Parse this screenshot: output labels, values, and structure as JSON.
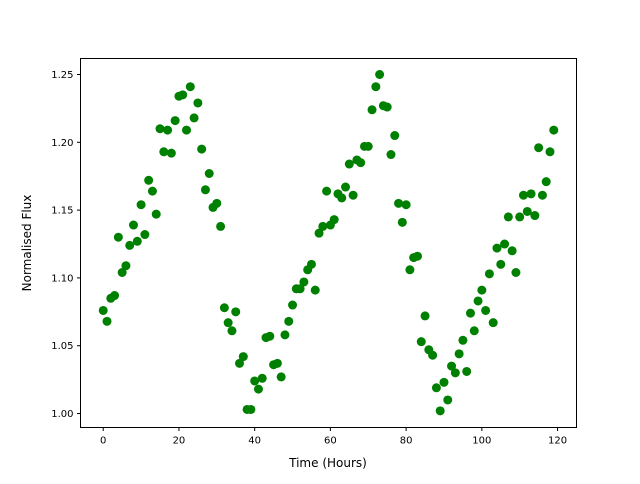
{
  "chart_data": {
    "type": "scatter",
    "title": "",
    "xlabel": "Time (Hours)",
    "ylabel": "Normalised Flux",
    "xlim": [
      -6,
      125
    ],
    "ylim": [
      0.9897,
      1.2618
    ],
    "xticks": [
      0,
      20,
      40,
      60,
      80,
      100,
      120
    ],
    "yticks": [
      1.0,
      1.05,
      1.1,
      1.15,
      1.2,
      1.25
    ],
    "xtick_labels": [
      "0",
      "20",
      "40",
      "60",
      "80",
      "100",
      "120"
    ],
    "ytick_labels": [
      "1.00",
      "1.05",
      "1.10",
      "1.15",
      "1.20",
      "1.25"
    ],
    "grid": false,
    "marker_color": "#008000",
    "x": [
      0,
      1,
      2,
      3,
      4,
      5,
      6,
      7,
      8,
      9,
      10,
      11,
      12,
      13,
      14,
      15,
      16,
      17,
      18,
      19,
      20,
      21,
      22,
      23,
      24,
      25,
      26,
      27,
      28,
      29,
      30,
      31,
      32,
      33,
      34,
      35,
      36,
      37,
      38,
      39,
      40,
      41,
      42,
      43,
      44,
      45,
      46,
      47,
      48,
      49,
      50,
      51,
      52,
      53,
      54,
      55,
      56,
      57,
      58,
      59,
      60,
      61,
      62,
      63,
      64,
      65,
      66,
      67,
      68,
      69,
      70,
      71,
      72,
      73,
      74,
      75,
      76,
      77,
      78,
      79,
      80,
      81,
      82,
      83,
      84,
      85,
      86,
      87,
      88,
      89,
      90,
      91,
      92,
      93,
      94,
      95,
      96,
      97,
      98,
      99,
      100,
      101,
      102,
      103,
      104,
      105,
      106,
      107,
      108,
      109,
      110,
      111,
      112,
      113,
      114,
      115,
      116,
      117,
      118,
      119
    ],
    "y": [
      1.076,
      1.068,
      1.085,
      1.087,
      1.13,
      1.104,
      1.109,
      1.124,
      1.139,
      1.127,
      1.154,
      1.132,
      1.172,
      1.164,
      1.147,
      1.21,
      1.193,
      1.209,
      1.192,
      1.216,
      1.234,
      1.235,
      1.209,
      1.241,
      1.218,
      1.229,
      1.195,
      1.165,
      1.177,
      1.152,
      1.155,
      1.138,
      1.078,
      1.067,
      1.061,
      1.075,
      1.037,
      1.042,
      1.003,
      1.003,
      1.024,
      1.018,
      1.026,
      1.056,
      1.057,
      1.036,
      1.037,
      1.027,
      1.058,
      1.068,
      1.08,
      1.092,
      1.092,
      1.097,
      1.106,
      1.11,
      1.091,
      1.133,
      1.138,
      1.164,
      1.139,
      1.143,
      1.162,
      1.159,
      1.167,
      1.184,
      1.161,
      1.187,
      1.185,
      1.197,
      1.197,
      1.224,
      1.241,
      1.25,
      1.227,
      1.226,
      1.191,
      1.205,
      1.155,
      1.141,
      1.154,
      1.106,
      1.115,
      1.116,
      1.053,
      1.072,
      1.047,
      1.043,
      1.019,
      1.002,
      1.023,
      1.01,
      1.035,
      1.03,
      1.044,
      1.054,
      1.031,
      1.074,
      1.061,
      1.083,
      1.091,
      1.076,
      1.103,
      1.067,
      1.122,
      1.11,
      1.125,
      1.145,
      1.12,
      1.104,
      1.145,
      1.161,
      1.149,
      1.162,
      1.146,
      1.196,
      1.161,
      1.171,
      1.193,
      1.209
    ]
  }
}
